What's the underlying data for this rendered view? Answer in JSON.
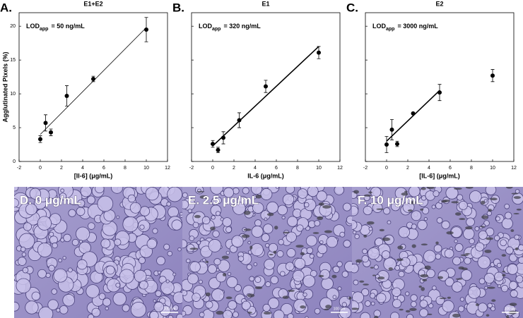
{
  "chart_data": [
    {
      "type": "scatter",
      "panel": "A.",
      "title": "E1+E2",
      "xlabel": "[Il-6] (μg/mL)",
      "ylabel": "Agglutinated Pixels (%)",
      "annotation": {
        "main": "LOD",
        "sub": "app",
        "rest": "= 50 ng/mL"
      },
      "x": [
        0,
        0.5,
        1,
        2.5,
        5,
        10
      ],
      "values": [
        3.3,
        5.7,
        4.3,
        9.7,
        12.2,
        19.5
      ],
      "errors": [
        0.5,
        1.2,
        0.5,
        1.5,
        0.4,
        1.8
      ],
      "fit": {
        "x": [
          0,
          10
        ],
        "y": [
          4.0,
          19.8
        ]
      },
      "fit_width": 0.8,
      "color": "#000000",
      "xlim": [
        -2,
        12
      ],
      "ylim": [
        0,
        22
      ],
      "xticks": [
        -2,
        0,
        2,
        4,
        6,
        8,
        10,
        12
      ],
      "yticks": [
        0,
        5,
        10,
        15,
        20
      ],
      "ytick_labels": true
    },
    {
      "type": "scatter",
      "panel": "B.",
      "title": "E1",
      "xlabel": "IL-6 (μg/mL)",
      "annotation": {
        "main": "LOD",
        "sub": "app",
        "rest": "= 320 ng/mL"
      },
      "x": [
        0,
        0.5,
        1,
        2.5,
        5,
        10
      ],
      "values": [
        2.6,
        1.7,
        3.5,
        6.1,
        11.1,
        16.1
      ],
      "errors": [
        0.5,
        0.4,
        0.9,
        1.1,
        0.9,
        0.9
      ],
      "fit": {
        "x": [
          0,
          10
        ],
        "y": [
          2.3,
          17.0
        ]
      },
      "fit_width": 1.6,
      "color": "#000000",
      "xlim": [
        -2,
        12
      ],
      "ylim": [
        0,
        22
      ],
      "xticks": [
        -2,
        0,
        2,
        4,
        6,
        8,
        10,
        12
      ],
      "yticks": [
        0,
        5,
        10,
        15,
        20
      ],
      "ytick_labels": false
    },
    {
      "type": "scatter",
      "panel": "C.",
      "title": "E2",
      "xlabel": "[IL-6] (μg/mL)",
      "annotation": {
        "main": "LOD",
        "sub": "app",
        "rest": "= 3000 ng/mL"
      },
      "x": [
        0,
        0.5,
        1,
        2.5,
        5,
        10
      ],
      "values": [
        2.5,
        4.7,
        2.6,
        7.1,
        10.2,
        12.7
      ],
      "errors": [
        1.2,
        1.5,
        0.4,
        0.1,
        1.2,
        0.9
      ],
      "fit": {
        "x": [
          0,
          5
        ],
        "y": [
          3.0,
          10.5
        ]
      },
      "fit_width": 1.6,
      "color": "#000000",
      "xlim": [
        -2,
        12
      ],
      "ylim": [
        0,
        22
      ],
      "xticks": [
        -2,
        0,
        2,
        4,
        6,
        8,
        10,
        12
      ],
      "yticks": [
        0,
        5,
        10,
        15,
        20
      ],
      "ytick_labels": false
    }
  ],
  "images": [
    {
      "label": "D. 0 μg/mL",
      "scale_bar": "100 μm"
    },
    {
      "label": "E. 2.5 μg/mL",
      "scale_bar": "100 μm"
    },
    {
      "label": "F. 10 μg/mL",
      "scale_bar": "100 μm"
    }
  ]
}
